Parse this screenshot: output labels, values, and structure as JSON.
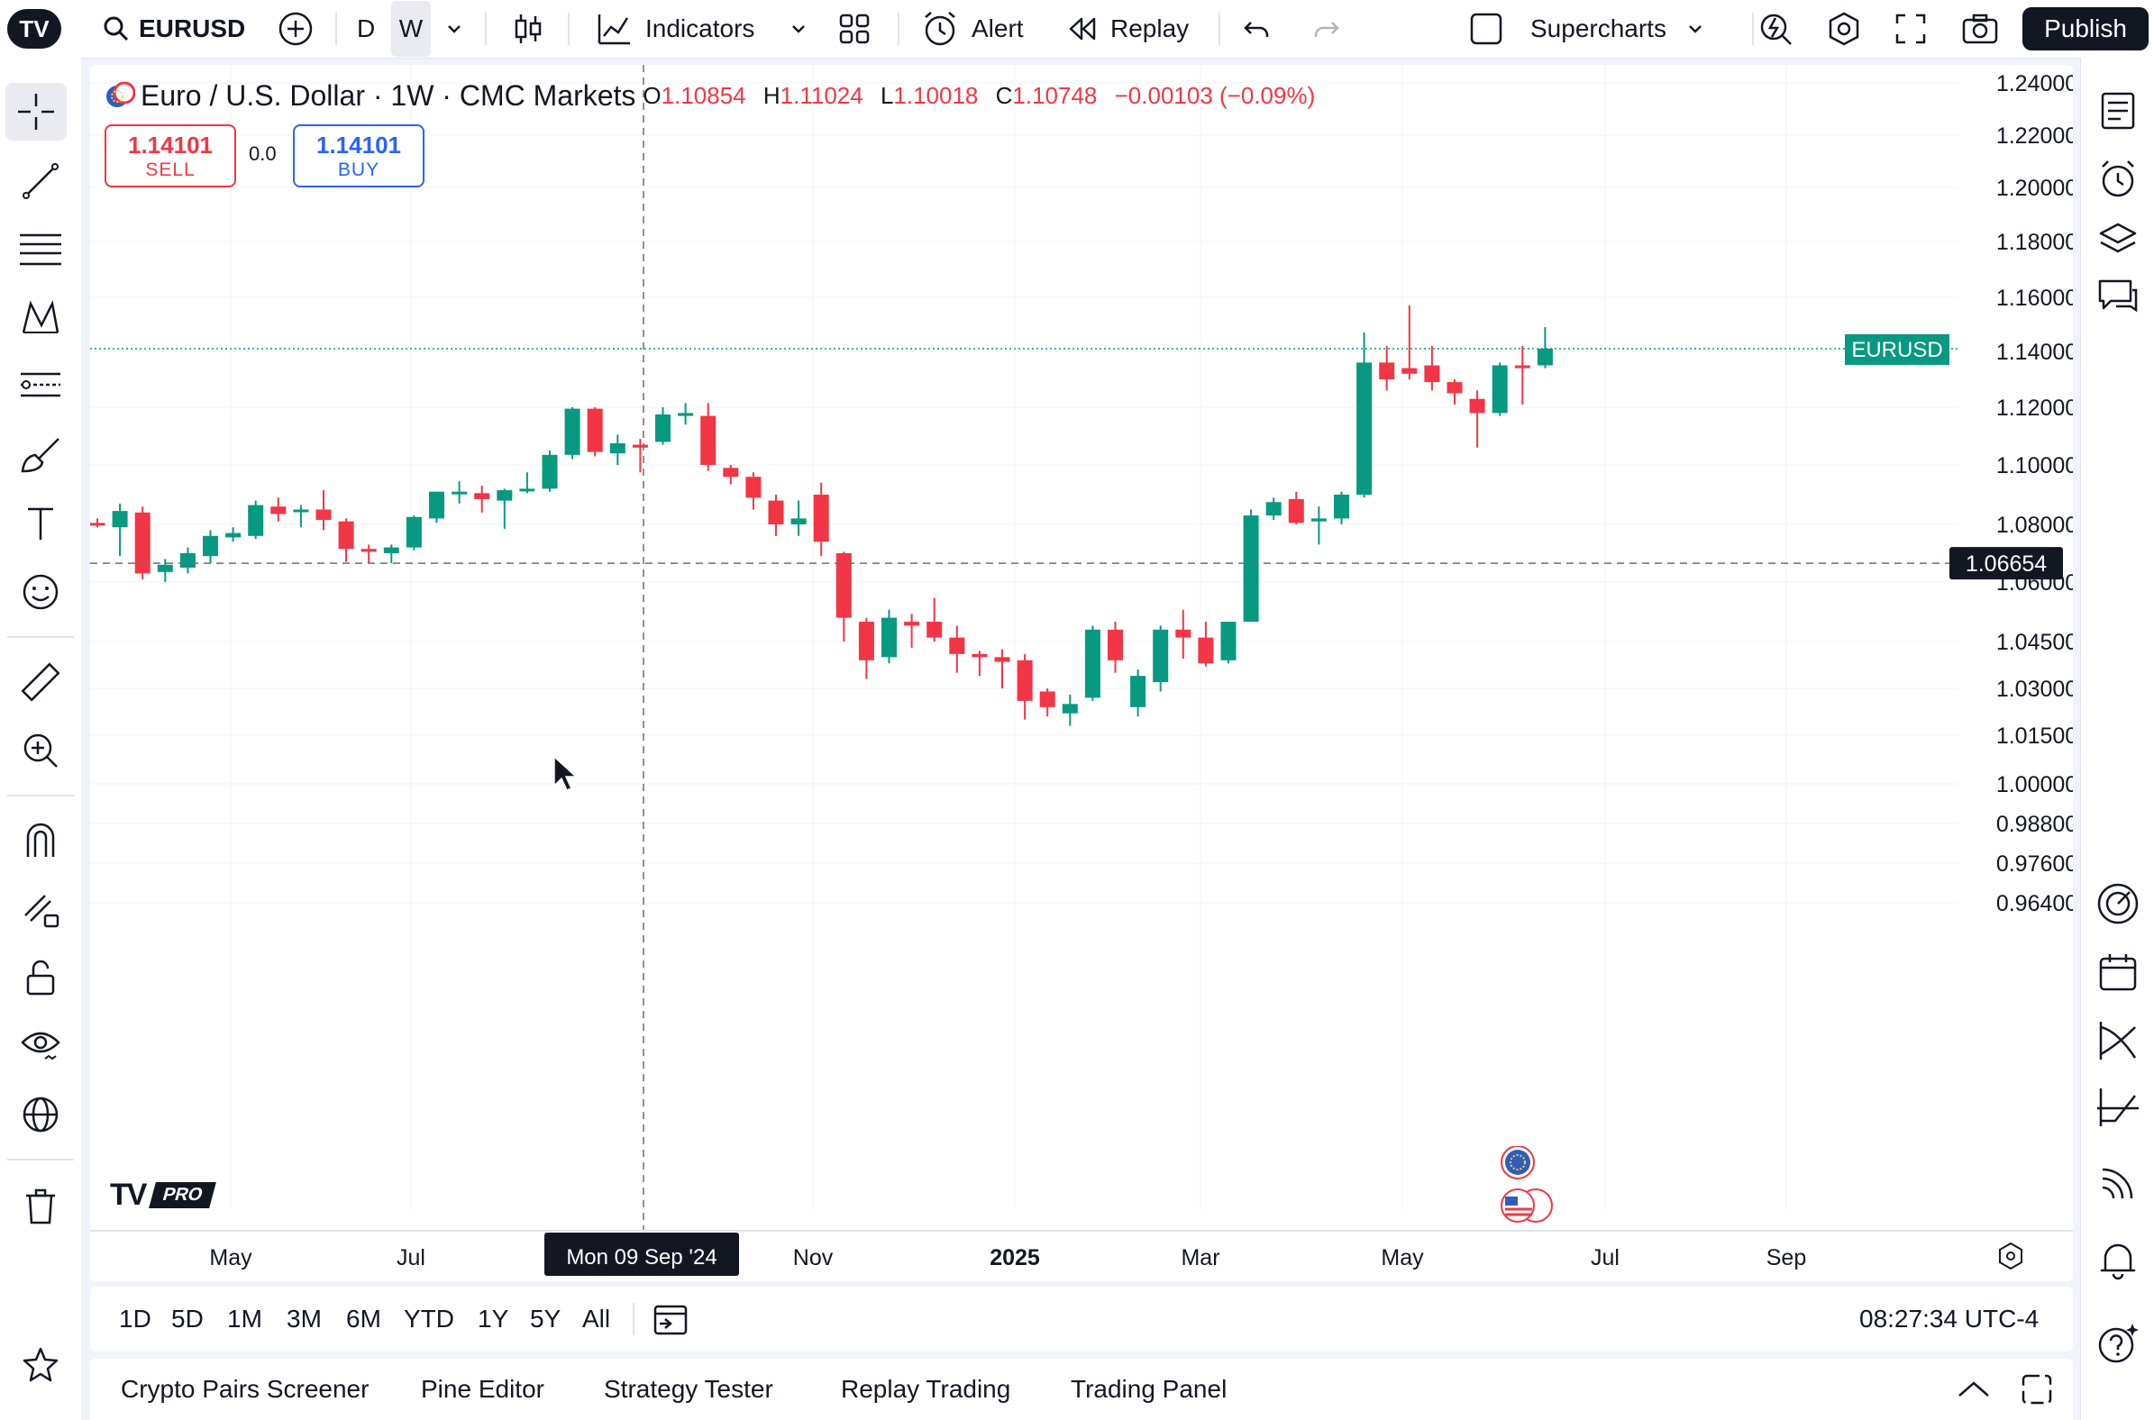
{
  "topbar": {
    "symbol": "EURUSD",
    "intervals": [
      "D",
      "W"
    ],
    "indicators_label": "Indicators",
    "alert_label": "Alert",
    "replay_label": "Replay",
    "layout_name": "Supercharts",
    "publish_label": "Publish"
  },
  "legend": {
    "title": "Euro / U.S. Dollar · 1W · CMC Markets",
    "o_label": "O",
    "o": "1.10854",
    "h_label": "H",
    "h": "1.11024",
    "l_label": "L",
    "l": "1.10018",
    "c_label": "C",
    "c": "1.10748",
    "change": "−0.00103 (−0.09%)"
  },
  "trade": {
    "sell_price": "1.14101",
    "sell_label": "SELL",
    "spread": "0.0",
    "buy_price": "1.14101",
    "buy_label": "BUY"
  },
  "badges": {
    "symbol_tag": "EURUSD",
    "crosshair_price": "1.06654",
    "crosshair_date": "Mon 09 Sep '24",
    "tv_pro": "PRO"
  },
  "yaxis_labels": [
    "1.24000",
    "1.22000",
    "1.20000",
    "1.18000",
    "1.16000",
    "1.14000",
    "1.12000",
    "1.10000",
    "1.08000",
    "1.06000",
    "1.04500",
    "1.03000",
    "1.01500",
    "1.00000",
    "0.98800",
    "0.97600",
    "0.96400"
  ],
  "xaxis_labels": [
    "May",
    "Jul",
    "Nov",
    "2025",
    "Mar",
    "May",
    "Jul",
    "Sep"
  ],
  "ranges": [
    "1D",
    "5D",
    "1M",
    "3M",
    "6M",
    "YTD",
    "1Y",
    "5Y",
    "All"
  ],
  "clock": "08:27:34 UTC-4",
  "bottom_tabs": [
    "Crypto Pairs Screener",
    "Pine Editor",
    "Strategy Tester",
    "Replay Trading",
    "Trading Panel"
  ],
  "colors": {
    "up": "#089981",
    "down": "#f23645",
    "accent": "#2962ff"
  },
  "chart_data": {
    "type": "candlestick",
    "title": "Euro / U.S. Dollar · 1W · CMC Markets",
    "current_price": 1.14101,
    "crosshair_price": 1.06654,
    "crosshair_date": "Mon 09 Sep '24",
    "candles": [
      {
        "o": 1.0805,
        "h": 1.082,
        "l": 1.079,
        "c": 1.08
      },
      {
        "o": 1.079,
        "h": 1.087,
        "l": 1.069,
        "c": 1.0845
      },
      {
        "o": 1.084,
        "h": 1.086,
        "l": 1.061,
        "c": 1.063
      },
      {
        "o": 1.0635,
        "h": 1.068,
        "l": 1.06,
        "c": 1.066
      },
      {
        "o": 1.065,
        "h": 1.072,
        "l": 1.063,
        "c": 1.07
      },
      {
        "o": 1.069,
        "h": 1.078,
        "l": 1.0665,
        "c": 1.076
      },
      {
        "o": 1.0755,
        "h": 1.079,
        "l": 1.074,
        "c": 1.077
      },
      {
        "o": 1.076,
        "h": 1.088,
        "l": 1.075,
        "c": 1.0865
      },
      {
        "o": 1.086,
        "h": 1.089,
        "l": 1.081,
        "c": 1.0835
      },
      {
        "o": 1.0845,
        "h": 1.0865,
        "l": 1.079,
        "c": 1.085
      },
      {
        "o": 1.085,
        "h": 1.0915,
        "l": 1.078,
        "c": 1.0815
      },
      {
        "o": 1.081,
        "h": 1.082,
        "l": 1.067,
        "c": 1.0715
      },
      {
        "o": 1.0715,
        "h": 1.073,
        "l": 1.0665,
        "c": 1.0705
      },
      {
        "o": 1.07,
        "h": 1.073,
        "l": 1.0665,
        "c": 1.072
      },
      {
        "o": 1.072,
        "h": 1.083,
        "l": 1.071,
        "c": 1.0825
      },
      {
        "o": 1.082,
        "h": 1.091,
        "l": 1.0805,
        "c": 1.091
      },
      {
        "o": 1.0905,
        "h": 1.0945,
        "l": 1.087,
        "c": 1.091
      },
      {
        "o": 1.0905,
        "h": 1.093,
        "l": 1.084,
        "c": 1.0885
      },
      {
        "o": 1.088,
        "h": 1.092,
        "l": 1.0785,
        "c": 1.0915
      },
      {
        "o": 1.0915,
        "h": 1.0975,
        "l": 1.0905,
        "c": 1.092
      },
      {
        "o": 1.092,
        "h": 1.105,
        "l": 1.091,
        "c": 1.1035
      },
      {
        "o": 1.1035,
        "h": 1.12,
        "l": 1.102,
        "c": 1.1195
      },
      {
        "o": 1.1195,
        "h": 1.12,
        "l": 1.103,
        "c": 1.1045
      },
      {
        "o": 1.104,
        "h": 1.1105,
        "l": 1.1,
        "c": 1.1075
      },
      {
        "o": 1.107,
        "h": 1.109,
        "l": 1.0975,
        "c": 1.106
      },
      {
        "o": 1.108,
        "h": 1.12,
        "l": 1.107,
        "c": 1.1175
      },
      {
        "o": 1.117,
        "h": 1.1215,
        "l": 1.114,
        "c": 1.118
      },
      {
        "o": 1.117,
        "h": 1.1215,
        "l": 1.098,
        "c": 1.1
      },
      {
        "o": 1.099,
        "h": 1.1,
        "l": 1.0935,
        "c": 1.096
      },
      {
        "o": 1.096,
        "h": 1.0975,
        "l": 1.085,
        "c": 1.089
      },
      {
        "o": 1.088,
        "h": 1.09,
        "l": 1.076,
        "c": 1.08
      },
      {
        "o": 1.08,
        "h": 1.088,
        "l": 1.076,
        "c": 1.082
      },
      {
        "o": 1.09,
        "h": 1.094,
        "l": 1.069,
        "c": 1.074
      },
      {
        "o": 1.07,
        "h": 1.0705,
        "l": 1.045,
        "c": 1.051
      },
      {
        "o": 1.05,
        "h": 1.051,
        "l": 1.033,
        "c": 1.039
      },
      {
        "o": 1.04,
        "h": 1.053,
        "l": 1.038,
        "c": 1.051
      },
      {
        "o": 1.05,
        "h": 1.052,
        "l": 1.043,
        "c": 1.049
      },
      {
        "o": 1.05,
        "h": 1.056,
        "l": 1.045,
        "c": 1.046
      },
      {
        "o": 1.046,
        "h": 1.049,
        "l": 1.035,
        "c": 1.041
      },
      {
        "o": 1.041,
        "h": 1.042,
        "l": 1.034,
        "c": 1.04
      },
      {
        "o": 1.04,
        "h": 1.0425,
        "l": 1.03,
        "c": 1.0385
      },
      {
        "o": 1.039,
        "h": 1.041,
        "l": 1.02,
        "c": 1.026
      },
      {
        "o": 1.029,
        "h": 1.03,
        "l": 1.021,
        "c": 1.024
      },
      {
        "o": 1.022,
        "h": 1.028,
        "l": 1.018,
        "c": 1.025
      },
      {
        "o": 1.027,
        "h": 1.049,
        "l": 1.026,
        "c": 1.048
      },
      {
        "o": 1.048,
        "h": 1.05,
        "l": 1.035,
        "c": 1.039
      },
      {
        "o": 1.024,
        "h": 1.036,
        "l": 1.021,
        "c": 1.034
      },
      {
        "o": 1.032,
        "h": 1.049,
        "l": 1.029,
        "c": 1.048
      },
      {
        "o": 1.048,
        "h": 1.053,
        "l": 1.0395,
        "c": 1.046
      },
      {
        "o": 1.046,
        "h": 1.05,
        "l": 1.037,
        "c": 1.038
      },
      {
        "o": 1.039,
        "h": 1.05,
        "l": 1.038,
        "c": 1.05
      },
      {
        "o": 1.05,
        "h": 1.085,
        "l": 1.05,
        "c": 1.083
      },
      {
        "o": 1.083,
        "h": 1.089,
        "l": 1.0815,
        "c": 1.0875
      },
      {
        "o": 1.0885,
        "h": 1.091,
        "l": 1.08,
        "c": 1.0805
      },
      {
        "o": 1.081,
        "h": 1.086,
        "l": 1.073,
        "c": 1.082
      },
      {
        "o": 1.082,
        "h": 1.091,
        "l": 1.08,
        "c": 1.09
      },
      {
        "o": 1.09,
        "h": 1.147,
        "l": 1.089,
        "c": 1.136
      },
      {
        "o": 1.136,
        "h": 1.142,
        "l": 1.126,
        "c": 1.13
      },
      {
        "o": 1.134,
        "h": 1.157,
        "l": 1.13,
        "c": 1.132
      },
      {
        "o": 1.135,
        "h": 1.142,
        "l": 1.126,
        "c": 1.129
      },
      {
        "o": 1.129,
        "h": 1.13,
        "l": 1.121,
        "c": 1.125
      },
      {
        "o": 1.123,
        "h": 1.126,
        "l": 1.106,
        "c": 1.118
      },
      {
        "o": 1.118,
        "h": 1.136,
        "l": 1.117,
        "c": 1.135
      },
      {
        "o": 1.135,
        "h": 1.142,
        "l": 1.121,
        "c": 1.134
      },
      {
        "o": 1.135,
        "h": 1.149,
        "l": 1.134,
        "c": 1.141
      }
    ]
  }
}
